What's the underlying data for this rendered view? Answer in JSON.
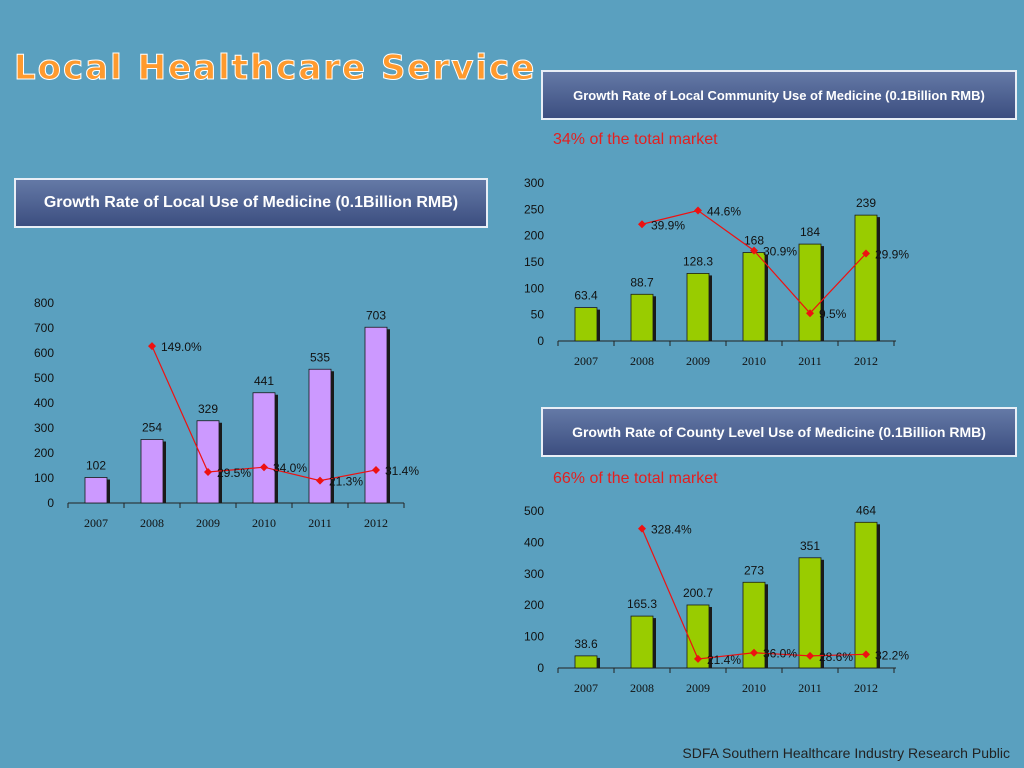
{
  "page": {
    "title": "Local Healthcare Service",
    "footer": "SDFA Southern Healthcare Industry Research Public"
  },
  "charts": {
    "local": {
      "heading": "Growth Rate of Local Use of Medicine  (0.1Billion RMB)",
      "bar_color": "#cc99ff"
    },
    "community": {
      "heading": "Growth Rate of Local Community Use of Medicine (0.1Billion RMB)",
      "share_note": "34% of the total market",
      "bar_color": "#99cc00"
    },
    "county": {
      "heading": "Growth Rate of County Level Use of Medicine (0.1Billion RMB)",
      "share_note": "66% of the total market",
      "bar_color": "#99cc00"
    }
  },
  "chart_data": [
    {
      "id": "local",
      "type": "bar",
      "title": "Growth Rate of Local Use of Medicine  (0.1Billion RMB)",
      "categories": [
        "2007",
        "2008",
        "2009",
        "2010",
        "2011",
        "2012"
      ],
      "values": [
        102,
        254,
        329,
        441,
        535,
        703
      ],
      "value_labels": [
        "102",
        "254",
        "329",
        "441",
        "535",
        "703"
      ],
      "ylim": [
        0,
        800
      ],
      "yticks": [
        "0",
        "100",
        "200",
        "300",
        "400",
        "500",
        "600",
        "700",
        "800"
      ],
      "growth": [
        null,
        149.0,
        29.5,
        34.0,
        21.3,
        31.4
      ],
      "growth_labels": [
        "",
        "149.0%",
        "29.5%",
        "34.0%",
        "21.3%",
        "31.4%"
      ],
      "growth_range": [
        0,
        190
      ],
      "line_color": "#ee1111"
    },
    {
      "id": "community",
      "type": "bar",
      "title": "Growth Rate of Local Community Use of Medicine (0.1Billion RMB)",
      "categories": [
        "2007",
        "2008",
        "2009",
        "2010",
        "2011",
        "2012"
      ],
      "values": [
        63.4,
        88.7,
        128.3,
        168,
        184,
        239
      ],
      "value_labels": [
        "63.4",
        "88.7",
        "128.3",
        "168",
        "184",
        "239"
      ],
      "ylim": [
        0,
        300
      ],
      "yticks": [
        "0",
        "50",
        "100",
        "150",
        "200",
        "250",
        "300"
      ],
      "growth": [
        null,
        39.9,
        44.6,
        30.9,
        9.5,
        29.9
      ],
      "growth_labels": [
        "",
        "39.9%",
        "44.6%",
        "30.9%",
        "9.5%",
        "29.9%"
      ],
      "growth_range": [
        0,
        54
      ],
      "line_color": "#ee1111"
    },
    {
      "id": "county",
      "type": "bar",
      "title": "Growth Rate of County Level Use of Medicine (0.1Billion RMB)",
      "categories": [
        "2007",
        "2008",
        "2009",
        "2010",
        "2011",
        "2012"
      ],
      "values": [
        38.6,
        165.3,
        200.7,
        273,
        351,
        464
      ],
      "value_labels": [
        "38.6",
        "165.3",
        "200.7",
        "273",
        "351",
        "464"
      ],
      "ylim": [
        0,
        500
      ],
      "yticks": [
        "0",
        "100",
        "200",
        "300",
        "400",
        "500"
      ],
      "growth": [
        null,
        328.4,
        21.4,
        36.0,
        28.6,
        32.2
      ],
      "growth_labels": [
        "",
        "328.4%",
        "21.4%",
        "36.0%",
        "28.6%",
        "32.2%"
      ],
      "growth_range": [
        0,
        370
      ],
      "line_color": "#ee1111"
    }
  ]
}
